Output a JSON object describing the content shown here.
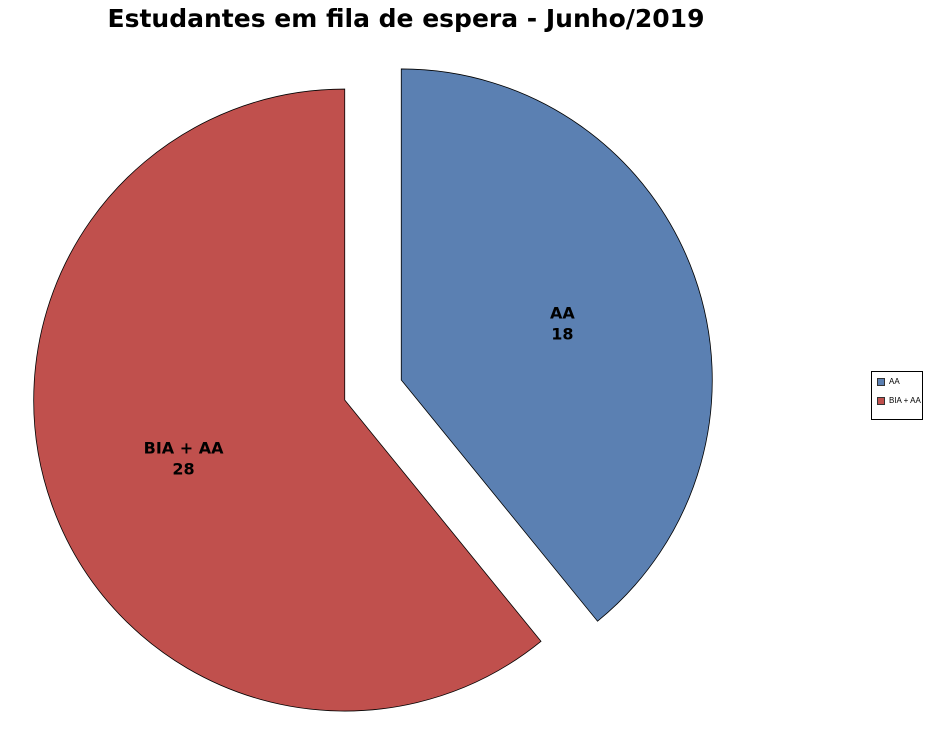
{
  "chart_data": {
    "type": "pie",
    "title": "Estudantes em fila de espera - Junho/2019",
    "categories": [
      "AA",
      "BIA + AA"
    ],
    "values": [
      18,
      28
    ],
    "colors": [
      "#5B80B2",
      "#C0504D"
    ],
    "exploded": true,
    "data_labels": "category and value",
    "legend": "right"
  }
}
